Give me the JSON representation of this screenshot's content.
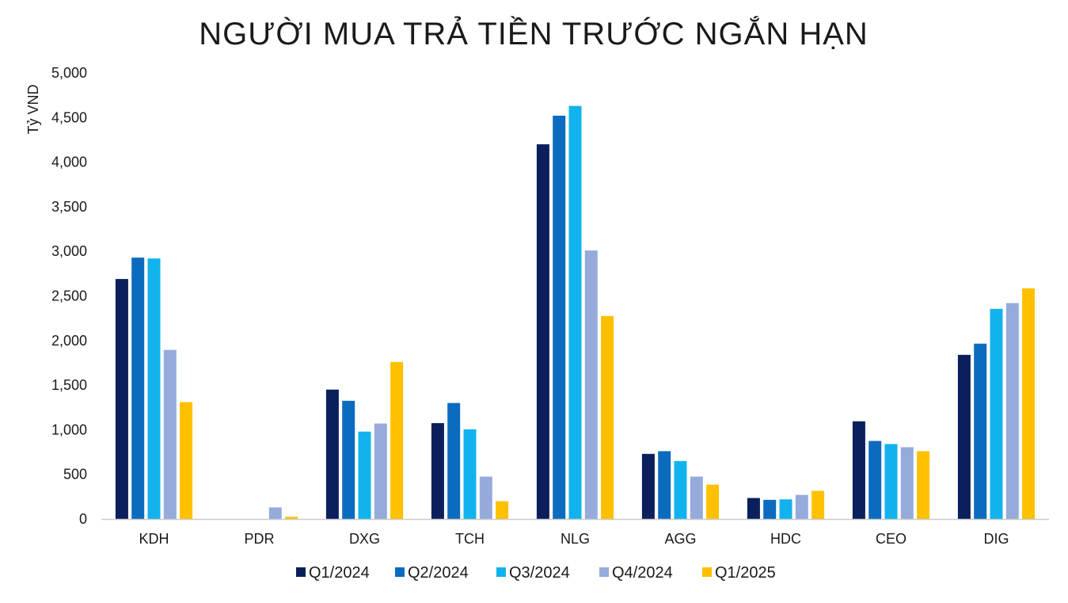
{
  "chart_data": {
    "type": "bar",
    "title": "NGƯỜI MUA TRẢ TIỀN TRƯỚC NGẮN HẠN",
    "xlabel": "",
    "ylabel": "Tỷ VND",
    "ylim": [
      0,
      5000
    ],
    "yticks": [
      0,
      500,
      1000,
      1500,
      2000,
      2500,
      3000,
      3500,
      4000,
      4500,
      5000
    ],
    "ytick_labels": [
      "0",
      "500",
      "1,000",
      "1,500",
      "2,000",
      "2,500",
      "3,000",
      "3,500",
      "4,000",
      "4,500",
      "5,000"
    ],
    "grid": false,
    "legend_position": "bottom",
    "categories": [
      "KDH",
      "PDR",
      "DXG",
      "TCH",
      "NLG",
      "AGG",
      "HDC",
      "CEO",
      "DIG"
    ],
    "series": [
      {
        "name": "Q1/2024",
        "color": "#0a1f5c",
        "values": [
          2690,
          0,
          1450,
          1075,
          4200,
          730,
          235,
          1095,
          1840
        ]
      },
      {
        "name": "Q2/2024",
        "color": "#0b6bbf",
        "values": [
          2930,
          0,
          1325,
          1300,
          4520,
          760,
          215,
          875,
          1965
        ]
      },
      {
        "name": "Q3/2024",
        "color": "#12b2ee",
        "values": [
          2920,
          0,
          980,
          1005,
          4630,
          650,
          220,
          840,
          2355
        ]
      },
      {
        "name": "Q4/2024",
        "color": "#96abdc",
        "values": [
          1895,
          130,
          1070,
          475,
          3010,
          475,
          270,
          805,
          2420
        ]
      },
      {
        "name": "Q1/2025",
        "color": "#ffc000",
        "values": [
          1310,
          25,
          1760,
          200,
          2275,
          385,
          315,
          760,
          2585
        ]
      }
    ]
  }
}
